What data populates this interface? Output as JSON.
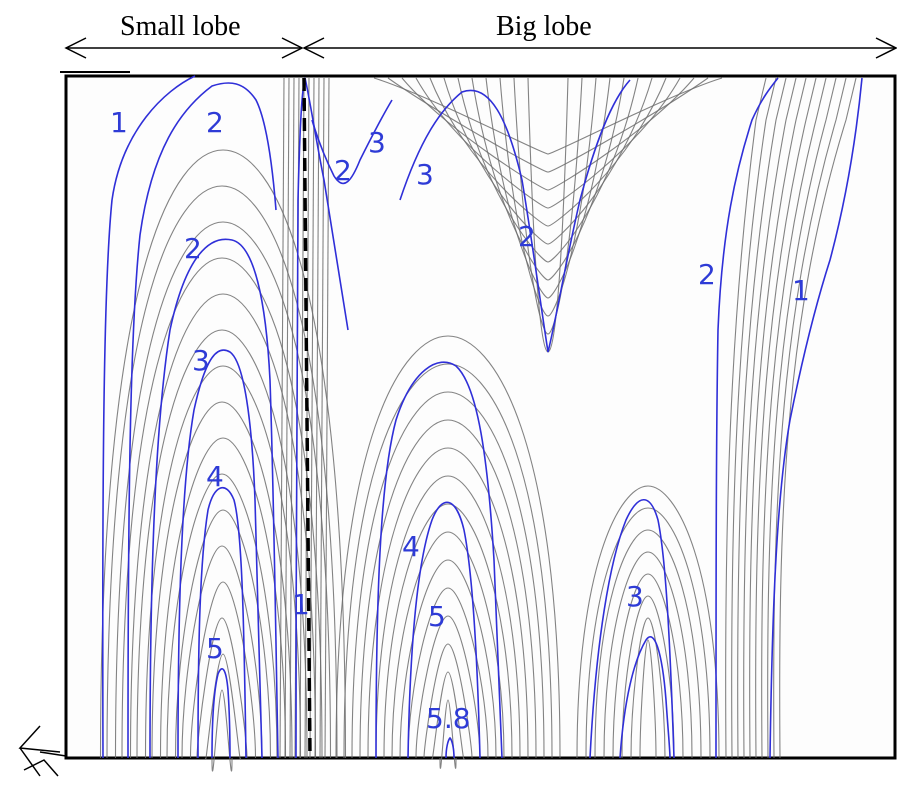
{
  "header": {
    "small_lobe_label": "Small lobe",
    "big_lobe_label": "Big lobe"
  },
  "contour_labels": [
    "1",
    "2",
    "2",
    "3",
    "4",
    "5",
    "2",
    "3",
    "3",
    "2",
    "2",
    "1",
    "4",
    "5",
    "5.8",
    "3",
    "1"
  ],
  "colors": {
    "contour_blue": "#2f2fd8",
    "contour_label_blue": "#2e3bd6",
    "gray_line": "#6d6d6d",
    "frame": "#000000"
  },
  "icons": {
    "observer": "eye-icon"
  }
}
